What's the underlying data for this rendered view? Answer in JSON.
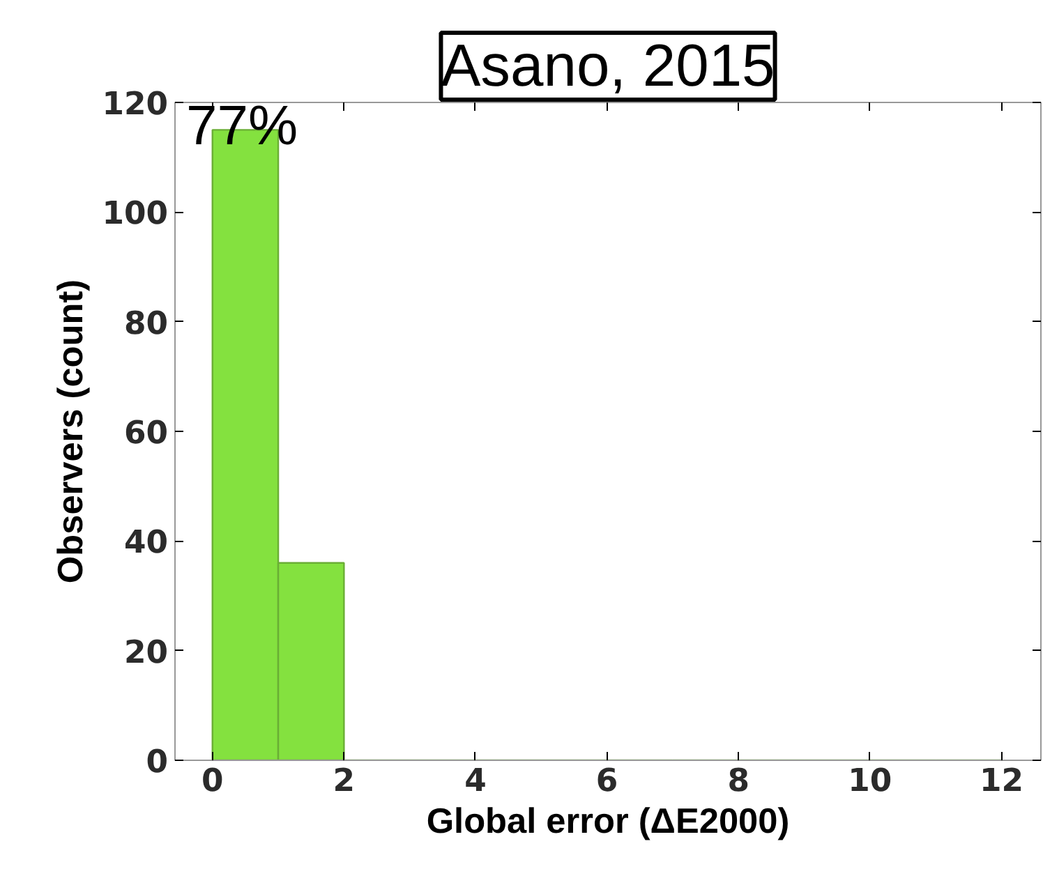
{
  "chart_data": {
    "type": "histogram",
    "title": "Asano, 2015",
    "xlabel": "Global error (ΔE2000)",
    "ylabel": "Observers (count)",
    "bins": [
      0,
      1,
      2,
      3,
      4,
      5,
      6,
      7,
      8,
      9,
      10,
      11,
      12
    ],
    "values": [
      115,
      36,
      0,
      0,
      0,
      0,
      0,
      0,
      0,
      0,
      0,
      0
    ],
    "color": "#84e13f",
    "xlim": [
      -0.57,
      12.6
    ],
    "ylim": [
      0,
      120
    ],
    "xticks": [
      0,
      2,
      4,
      6,
      8,
      10,
      12
    ],
    "yticks": [
      0,
      20,
      40,
      60,
      80,
      100,
      120
    ],
    "annotations": [
      "77%"
    ],
    "grid": false
  }
}
